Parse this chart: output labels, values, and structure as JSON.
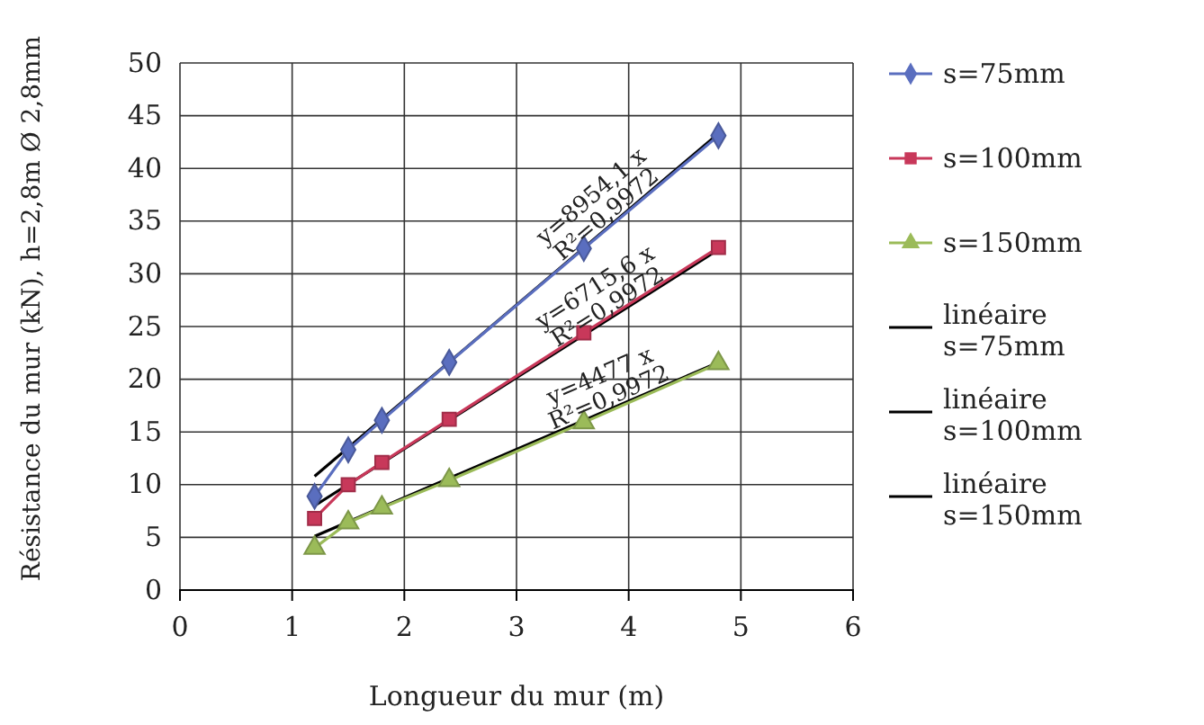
{
  "chart_data": {
    "type": "line",
    "xlabel": "Longueur du mur (m)",
    "ylabel": "Résistance du mur (kN), h=2,8m Ø 2,8mm",
    "xlim": [
      0,
      6
    ],
    "xticks": [
      0,
      1,
      2,
      3,
      4,
      5,
      6
    ],
    "ylim": [
      0,
      50
    ],
    "yticks": [
      0,
      5,
      10,
      15,
      20,
      25,
      30,
      35,
      40,
      45,
      50
    ],
    "grid": true,
    "legend": "right",
    "series": [
      {
        "name": "s=75mm",
        "color": "#5a6ebf",
        "marker": "diamond",
        "x": [
          1.2,
          1.5,
          1.8,
          2.4,
          3.6,
          4.8
        ],
        "values": [
          8.9,
          13.3,
          16.1,
          21.6,
          32.4,
          43.1
        ]
      },
      {
        "name": "s=100mm",
        "color": "#c8385a",
        "marker": "square",
        "x": [
          1.2,
          1.5,
          1.8,
          2.4,
          3.6,
          4.8
        ],
        "values": [
          6.8,
          10.0,
          12.1,
          16.2,
          24.4,
          32.5
        ]
      },
      {
        "name": "s=150mm",
        "color": "#9bbb59",
        "marker": "triangle",
        "x": [
          1.2,
          1.5,
          1.8,
          2.4,
          3.6,
          4.8
        ],
        "values": [
          4.0,
          6.4,
          7.8,
          10.4,
          15.9,
          21.5
        ]
      },
      {
        "name": "linéaire s=75mm",
        "color": "#000000",
        "marker": "none",
        "x": [
          1.2,
          4.8
        ],
        "values": [
          10.8,
          43.3
        ]
      },
      {
        "name": "linéaire s=100mm",
        "color": "#000000",
        "marker": "none",
        "x": [
          1.2,
          4.8
        ],
        "values": [
          8.0,
          32.3
        ]
      },
      {
        "name": "linéaire s=150mm",
        "color": "#000000",
        "marker": "none",
        "x": [
          1.2,
          4.8
        ],
        "values": [
          5.1,
          21.6
        ]
      }
    ],
    "annotations": [
      "y=8954,1 x",
      "R²=0,9972",
      "y=6715,6 x",
      "R²=0,9972",
      "y=4477 x",
      "R²=0,9972"
    ]
  }
}
